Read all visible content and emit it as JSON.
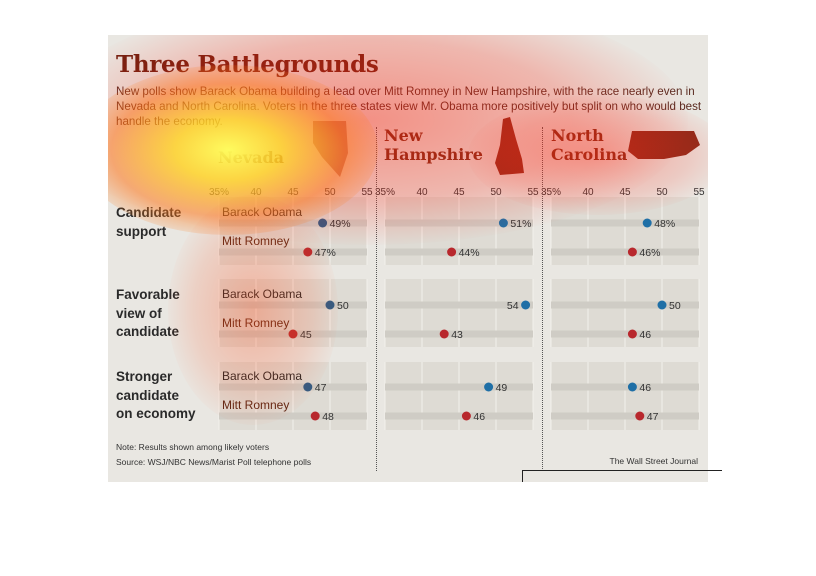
{
  "title": "Three Battlegrounds",
  "subtitle": "New polls show Barack Obama building a lead over Mitt Romney in New Hampshire, with the race nearly even in Nevada and North Carolina. Voters in the three states view Mr. Obama more positively but split on who would best handle the economy.",
  "note": "Note: Results shown among likely voters",
  "source": "Source: WSJ/NBC News/Marist Poll telephone polls",
  "credit": "The Wall Street Journal",
  "row_labels": {
    "support": [
      "Candidate",
      "support"
    ],
    "favorable": [
      "Favorable",
      "view of",
      "candidate"
    ],
    "economy": [
      "Stronger",
      "candidate",
      "on economy"
    ]
  },
  "state_labels": {
    "nevada": [
      "Nevada"
    ],
    "nh": [
      "New",
      "Hampshire"
    ],
    "nc": [
      "North",
      "Carolina"
    ]
  },
  "colors": {
    "obama": "#2e5a84",
    "obama_light": "#1f6fa6",
    "romney": "#b8282d",
    "band": "#cfccc5",
    "panel_bg": "#e9e7e2",
    "title": "#6f1f10"
  },
  "chart_data": {
    "type": "scatter",
    "x_ticks": [
      "35%",
      "40",
      "45",
      "50",
      "55"
    ],
    "xlim": [
      35,
      55
    ],
    "panels": [
      "Nevada",
      "New Hampshire",
      "North Carolina"
    ],
    "rows": [
      {
        "group": "Candidate support",
        "percent": true,
        "series": [
          {
            "name": "Barack Obama",
            "values": [
              49,
              51,
              48
            ]
          },
          {
            "name": "Mitt Romney",
            "values": [
              47,
              44,
              46
            ]
          }
        ]
      },
      {
        "group": "Favorable view of candidate",
        "percent": false,
        "series": [
          {
            "name": "Barack Obama",
            "values": [
              50,
              54,
              50
            ]
          },
          {
            "name": "Mitt Romney",
            "values": [
              45,
              43,
              46
            ]
          }
        ]
      },
      {
        "group": "Stronger candidate on economy",
        "percent": false,
        "series": [
          {
            "name": "Barack Obama",
            "values": [
              47,
              49,
              46
            ]
          },
          {
            "name": "Mitt Romney",
            "values": [
              48,
              46,
              47
            ]
          }
        ]
      }
    ]
  }
}
